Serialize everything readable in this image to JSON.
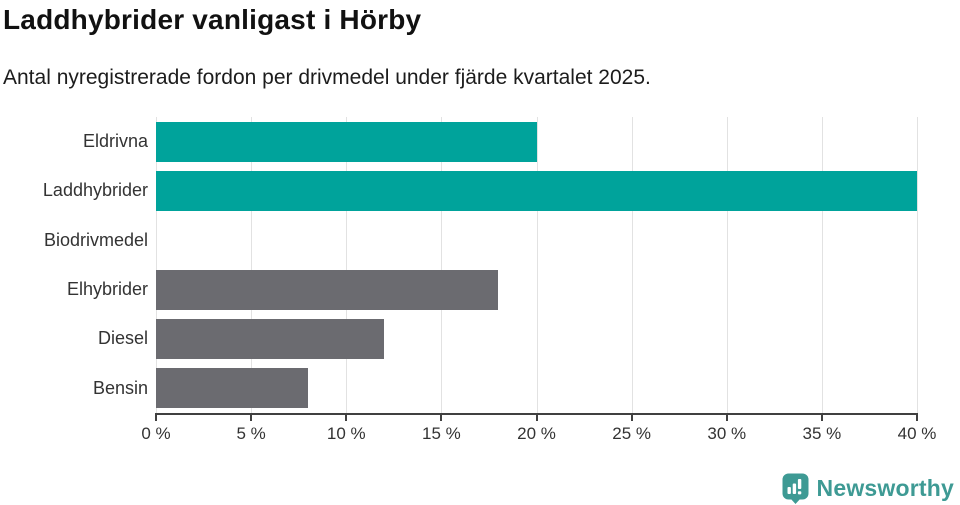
{
  "header": {
    "title": "Laddhybrider vanligast i Hörby",
    "subtitle": "Antal nyregistrerade fordon per drivmedel under fjärde kvartalet 2025."
  },
  "chart_data": {
    "type": "bar",
    "orientation": "horizontal",
    "title": "Laddhybrider vanligast i Hörby",
    "subtitle": "Antal nyregistrerade fordon per drivmedel under fjärde kvartalet 2025.",
    "categories": [
      "Eldrivna",
      "Laddhybrider",
      "Biodrivmedel",
      "Elhybrider",
      "Diesel",
      "Bensin"
    ],
    "values": [
      20,
      40,
      0,
      18,
      12,
      8
    ],
    "unit": "%",
    "xlim": [
      0,
      40
    ],
    "x_ticks": [
      0,
      5,
      10,
      15,
      20,
      25,
      30,
      35,
      40
    ],
    "x_tick_labels": [
      "0 %",
      "5 %",
      "10 %",
      "15 %",
      "20 %",
      "25 %",
      "30 %",
      "35 %",
      "40 %"
    ],
    "grid": true,
    "legend": false,
    "bar_colors": [
      "#00a39b",
      "#00a39b",
      "#6b6b70",
      "#6b6b70",
      "#6b6b70",
      "#6b6b70"
    ],
    "colors": {
      "highlight": "#00a39b",
      "default": "#6b6b70",
      "gridline": "#e2e2e2",
      "axis": "#404040",
      "label": "#333333"
    }
  },
  "footer": {
    "brand": "Newsworthy",
    "brand_color": "#3e9a94",
    "brand_icon": "newsworthy-bar-chart-bubble-icon"
  }
}
